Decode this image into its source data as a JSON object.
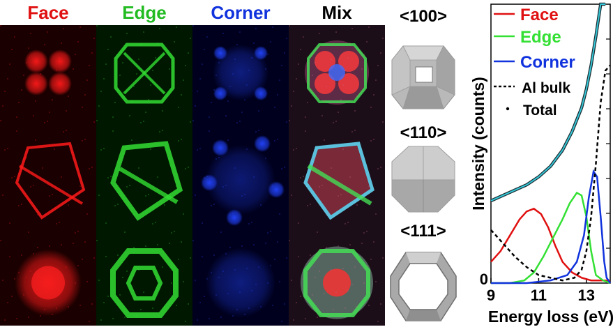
{
  "columns": [
    {
      "label": "Face",
      "color": "#e01010"
    },
    {
      "label": "Edge",
      "color": "#22bb22"
    },
    {
      "label": "Corner",
      "color": "#1133dd"
    },
    {
      "label": "Mix",
      "color": "#000000"
    }
  ],
  "orientations": [
    "<100>",
    "<110>",
    "<111>"
  ],
  "chart_data": {
    "type": "line",
    "xlabel": "Energy loss (eV)",
    "ylabel": "Intensity (counts)",
    "xlim": [
      9,
      14
    ],
    "x_ticks": [
      "9",
      "11",
      "13"
    ],
    "y_ticks": [
      "0"
    ],
    "legend_placement": "top-left",
    "series": [
      {
        "name": "Face",
        "color": "#e01010",
        "style": "solid",
        "x": [
          9.0,
          9.4,
          9.8,
          10.2,
          10.5,
          10.8,
          11.1,
          11.4,
          11.7,
          12.0,
          12.4,
          12.8,
          13.2,
          13.6,
          14.0
        ],
        "y": [
          0.08,
          0.12,
          0.18,
          0.24,
          0.27,
          0.28,
          0.26,
          0.21,
          0.14,
          0.08,
          0.04,
          0.02,
          0.01,
          0.01,
          0.01
        ]
      },
      {
        "name": "Edge",
        "color": "#33e033",
        "style": "solid",
        "x": [
          9.0,
          9.8,
          10.4,
          10.8,
          11.2,
          11.6,
          12.0,
          12.3,
          12.6,
          12.8,
          13.0,
          13.2,
          13.4,
          13.7,
          14.0
        ],
        "y": [
          0.0,
          0.0,
          0.01,
          0.04,
          0.1,
          0.17,
          0.24,
          0.3,
          0.34,
          0.33,
          0.25,
          0.12,
          0.03,
          0.01,
          0.0
        ]
      },
      {
        "name": "Corner",
        "color": "#1133dd",
        "style": "solid",
        "x": [
          9.0,
          10.5,
          11.5,
          12.2,
          12.6,
          12.9,
          13.1,
          13.3,
          13.45,
          13.6,
          13.75,
          13.85,
          14.0
        ],
        "y": [
          0.0,
          0.0,
          0.01,
          0.03,
          0.08,
          0.18,
          0.32,
          0.42,
          0.4,
          0.25,
          0.08,
          0.02,
          0.0
        ]
      },
      {
        "name": "Al bulk",
        "color": "#000000",
        "style": "dashed",
        "x": [
          9.0,
          9.5,
          10.0,
          10.5,
          11.0,
          11.5,
          12.0,
          12.5,
          12.8,
          13.0,
          13.2,
          13.4,
          13.6,
          13.8,
          14.0
        ],
        "y": [
          0.2,
          0.15,
          0.1,
          0.06,
          0.03,
          0.02,
          0.01,
          0.02,
          0.05,
          0.12,
          0.25,
          0.45,
          0.68,
          0.8,
          0.82
        ]
      },
      {
        "name": "Total",
        "color": "#35c8d8",
        "style": "dotted",
        "x": [
          9.0,
          9.5,
          10.0,
          10.5,
          11.0,
          11.5,
          12.0,
          12.4,
          12.8,
          13.0,
          13.2,
          13.4,
          13.6,
          13.8
        ],
        "y": [
          0.31,
          0.33,
          0.35,
          0.37,
          0.4,
          0.44,
          0.5,
          0.57,
          0.66,
          0.73,
          0.82,
          0.93,
          1.06,
          1.2
        ]
      }
    ]
  }
}
